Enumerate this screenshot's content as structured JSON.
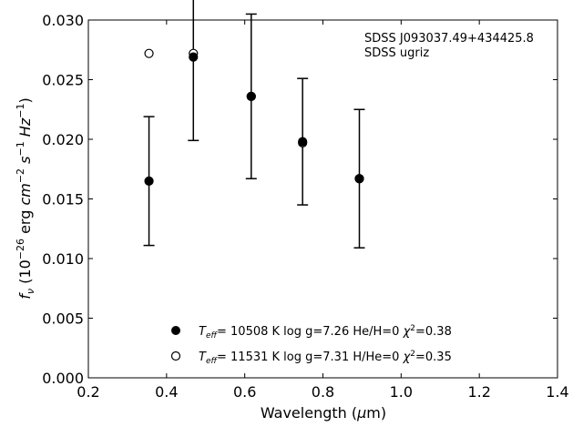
{
  "chart_data": {
    "type": "scatter",
    "xlabel": "Wavelength (μm)",
    "ylabel": "fν (10⁻²⁶ erg cm⁻² s⁻¹ Hz⁻¹)",
    "xlim": [
      0.2,
      1.4
    ],
    "ylim": [
      0.0,
      0.03
    ],
    "xticks": [
      "0.2",
      "0.4",
      "0.6",
      "0.8",
      "1.0",
      "1.2",
      "1.4"
    ],
    "yticks": [
      "0.000",
      "0.005",
      "0.010",
      "0.015",
      "0.020",
      "0.025",
      "0.030"
    ],
    "grid": false,
    "annotation": [
      "SDSS J093037.49+434425.8",
      "SDSS ugriz"
    ],
    "observed": {
      "x": [
        0.3551,
        0.4686,
        0.6166,
        0.748,
        0.8932
      ],
      "y": [
        0.0165,
        0.0269,
        0.0236,
        0.0198,
        0.0167
      ],
      "err": [
        0.0054,
        0.007,
        0.0069,
        0.0053,
        0.0058
      ]
    },
    "series": [
      {
        "legend": "Teff= 10508 K  log g=7.26  He/H=0  χ²=0.38",
        "marker": "filled-circle",
        "x": [
          0.3551,
          0.4686,
          0.6166,
          0.748,
          0.8932
        ],
        "y": [
          0.0165,
          0.0269,
          0.0236,
          0.0198,
          0.0167
        ]
      },
      {
        "legend": "Teff= 11531 K  log g=7.31  H/He=0  χ²=0.35",
        "marker": "open-circle",
        "x": [
          0.3551,
          0.4686,
          0.6166,
          0.748,
          0.8932
        ],
        "y": [
          0.0272,
          0.0272,
          0.0236,
          0.0197,
          0.0167
        ]
      }
    ],
    "legend_position": "bottom-center"
  }
}
